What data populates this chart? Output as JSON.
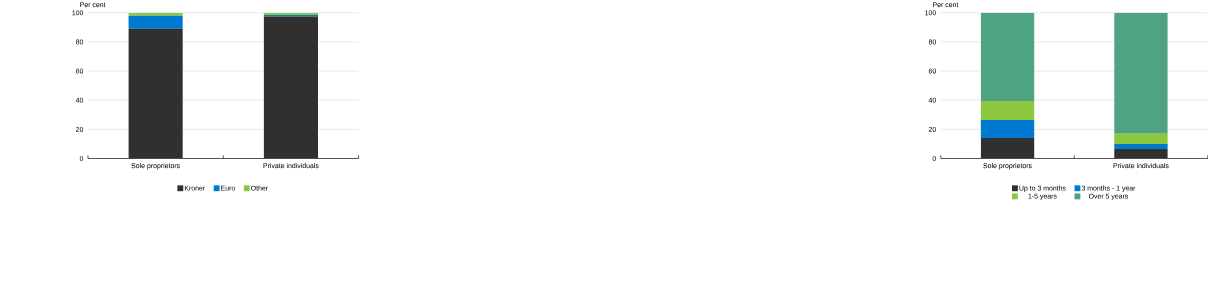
{
  "chart_data": [
    {
      "type": "bar",
      "stacked": true,
      "ylabel": "Per cent",
      "categories": [
        "Sole proprietors",
        "Private individuals"
      ],
      "ylim": [
        0,
        100
      ],
      "yticks": [
        0,
        20,
        40,
        60,
        80,
        100
      ],
      "grid": "y",
      "legend": "bottom",
      "series": [
        {
          "name": "Kroner",
          "color": "#303030",
          "values": [
            89,
            97.5
          ]
        },
        {
          "name": "Euro",
          "color": "#0079d0",
          "values": [
            9,
            1
          ]
        },
        {
          "name": "Other",
          "color": "#8dc63f",
          "values": [
            2,
            1.5
          ]
        }
      ]
    },
    {
      "type": "bar",
      "stacked": true,
      "ylabel": "Per cent",
      "categories": [
        "Sole proprietors",
        "Private individuals"
      ],
      "ylim": [
        0,
        100
      ],
      "yticks": [
        0,
        20,
        40,
        60,
        80,
        100
      ],
      "grid": "y",
      "legend": "bottom",
      "series": [
        {
          "name": "Up to 3 months",
          "color": "#303030",
          "values": [
            14,
            6.5
          ]
        },
        {
          "name": "3 months - 1 year",
          "color": "#0079d0",
          "values": [
            12.5,
            3.5
          ]
        },
        {
          "name": "1-5 years",
          "color": "#8dc63f",
          "values": [
            13,
            7
          ]
        },
        {
          "name": "Over 5 years",
          "color": "#4ea383",
          "values": [
            60.5,
            83
          ]
        }
      ]
    }
  ]
}
